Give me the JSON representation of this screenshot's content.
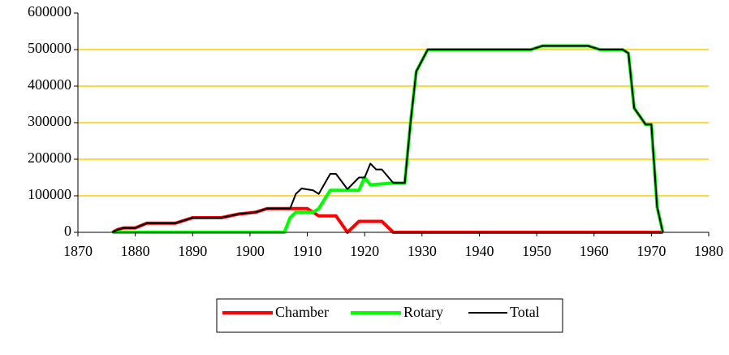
{
  "chart_data": {
    "type": "line",
    "xlim": [
      1870,
      1980
    ],
    "xticks": [
      1870,
      1880,
      1890,
      1900,
      1910,
      1920,
      1930,
      1940,
      1950,
      1960,
      1970,
      1980
    ],
    "ylim": [
      0,
      600000
    ],
    "yticks": [
      0,
      100000,
      200000,
      300000,
      400000,
      500000,
      600000
    ],
    "grid": true,
    "grid_color": "#ffcc00",
    "legend": "bottom",
    "series": [
      {
        "name": "Chamber",
        "color": "#ff0000",
        "width": 4,
        "x": [
          1876,
          1877,
          1878,
          1880,
          1882,
          1887,
          1889,
          1890,
          1895,
          1898,
          1901,
          1903,
          1910,
          1912,
          1915,
          1917,
          1919,
          1923,
          1925,
          1972
        ],
        "values": [
          0,
          8000,
          12000,
          12000,
          25000,
          25000,
          35000,
          40000,
          40000,
          50000,
          55000,
          65000,
          65000,
          45000,
          45000,
          0,
          30000,
          30000,
          0,
          0
        ]
      },
      {
        "name": "Rotary",
        "color": "#00ff00",
        "width": 4,
        "x": [
          1876,
          1906,
          1907,
          1908,
          1911,
          1912,
          1914,
          1919,
          1920,
          1921,
          1925,
          1927,
          1928,
          1929,
          1931,
          1949,
          1951,
          1959,
          1961,
          1965,
          1966,
          1967,
          1969,
          1970,
          1971,
          1972
        ],
        "values": [
          0,
          0,
          40000,
          55000,
          55000,
          65000,
          115000,
          115000,
          150000,
          130000,
          135000,
          135000,
          300000,
          440000,
          500000,
          500000,
          510000,
          510000,
          500000,
          500000,
          490000,
          340000,
          295000,
          295000,
          70000,
          0
        ]
      },
      {
        "name": "Total",
        "color": "#000000",
        "width": 2,
        "x": [
          1876,
          1877,
          1878,
          1880,
          1882,
          1887,
          1889,
          1890,
          1895,
          1898,
          1901,
          1903,
          1907,
          1908,
          1909,
          1911,
          1912,
          1914,
          1915,
          1917,
          1919,
          1920,
          1921,
          1922,
          1923,
          1925,
          1927,
          1928,
          1929,
          1931,
          1949,
          1951,
          1959,
          1961,
          1965,
          1966,
          1967,
          1969,
          1970,
          1971,
          1972
        ],
        "values": [
          0,
          8000,
          12000,
          12000,
          25000,
          25000,
          35000,
          40000,
          40000,
          50000,
          55000,
          65000,
          65000,
          105000,
          120000,
          115000,
          105000,
          160000,
          160000,
          118000,
          150000,
          150000,
          188000,
          172000,
          172000,
          135000,
          135000,
          300000,
          440000,
          500000,
          500000,
          510000,
          510000,
          500000,
          500000,
          490000,
          340000,
          295000,
          295000,
          70000,
          0
        ]
      }
    ]
  }
}
